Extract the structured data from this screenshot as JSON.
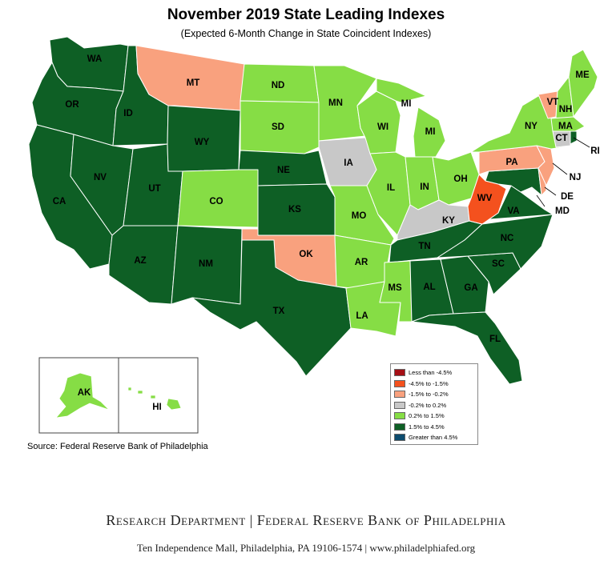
{
  "title": "November 2019 State Leading Indexes",
  "subtitle": "(Expected 6-Month Change in State Coincident Indexes)",
  "source": "Source: Federal Reserve Bank of Philadelphia",
  "footer": {
    "department": "Research Department",
    "separator": "|",
    "bank": "Federal Reserve Bank of Philadelphia",
    "address": "Ten Independence Mall, Philadelphia, PA 19106-1574 | www.philadelphiafed.org"
  },
  "colors": {
    "lt_neg45": "#a50f15",
    "neg45_neg15": "#f4511e",
    "neg15_neg02": "#f9a17e",
    "neg02_02": "#c8c8c8",
    "p02_15": "#86dd45",
    "p15_45": "#0e5f25",
    "gt45": "#0c4b6e"
  },
  "legend": [
    {
      "label": "Less than -4.5%",
      "color": "#a50f15"
    },
    {
      "label": "-4.5% to -1.5%",
      "color": "#f4511e"
    },
    {
      "label": "-1.5% to -0.2%",
      "color": "#f9a17e"
    },
    {
      "label": "-0.2% to 0.2%",
      "color": "#c8c8c8"
    },
    {
      "label": "0.2% to 1.5%",
      "color": "#86dd45"
    },
    {
      "label": "1.5% to 4.5%",
      "color": "#0e5f25"
    },
    {
      "label": "Greater than 4.5%",
      "color": "#0c4b6e"
    }
  ],
  "states": {
    "WA": "1.5% to 4.5%",
    "OR": "1.5% to 4.5%",
    "CA": "1.5% to 4.5%",
    "ID": "1.5% to 4.5%",
    "NV": "1.5% to 4.5%",
    "UT": "1.5% to 4.5%",
    "AZ": "1.5% to 4.5%",
    "MT": "-1.5% to -0.2%",
    "WY": "1.5% to 4.5%",
    "CO": "0.2% to 1.5%",
    "NM": "1.5% to 4.5%",
    "ND": "0.2% to 1.5%",
    "SD": "0.2% to 1.5%",
    "NE": "1.5% to 4.5%",
    "KS": "1.5% to 4.5%",
    "OK": "-1.5% to -0.2%",
    "TX": "1.5% to 4.5%",
    "MN": "0.2% to 1.5%",
    "IA": "-0.2% to 0.2%",
    "MO": "0.2% to 1.5%",
    "AR": "0.2% to 1.5%",
    "LA": "0.2% to 1.5%",
    "WI": "0.2% to 1.5%",
    "IL": "0.2% to 1.5%",
    "MI": "0.2% to 1.5%",
    "IN": "0.2% to 1.5%",
    "OH": "0.2% to 1.5%",
    "KY": "-0.2% to 0.2%",
    "TN": "1.5% to 4.5%",
    "MS": "0.2% to 1.5%",
    "AL": "1.5% to 4.5%",
    "GA": "1.5% to 4.5%",
    "FL": "1.5% to 4.5%",
    "SC": "1.5% to 4.5%",
    "NC": "1.5% to 4.5%",
    "VA": "1.5% to 4.5%",
    "WV": "-4.5% to -1.5%",
    "PA": "-1.5% to -0.2%",
    "NY": "0.2% to 1.5%",
    "VT": "-1.5% to -0.2%",
    "NH": "0.2% to 1.5%",
    "ME": "0.2% to 1.5%",
    "MA": "0.2% to 1.5%",
    "CT": "-0.2% to 0.2%",
    "RI": "1.5% to 4.5%",
    "NJ": "-1.5% to -0.2%",
    "DE": "-1.5% to -0.2%",
    "MD": "1.5% to 4.5%",
    "AK": "0.2% to 1.5%",
    "HI": "0.2% to 1.5%"
  }
}
